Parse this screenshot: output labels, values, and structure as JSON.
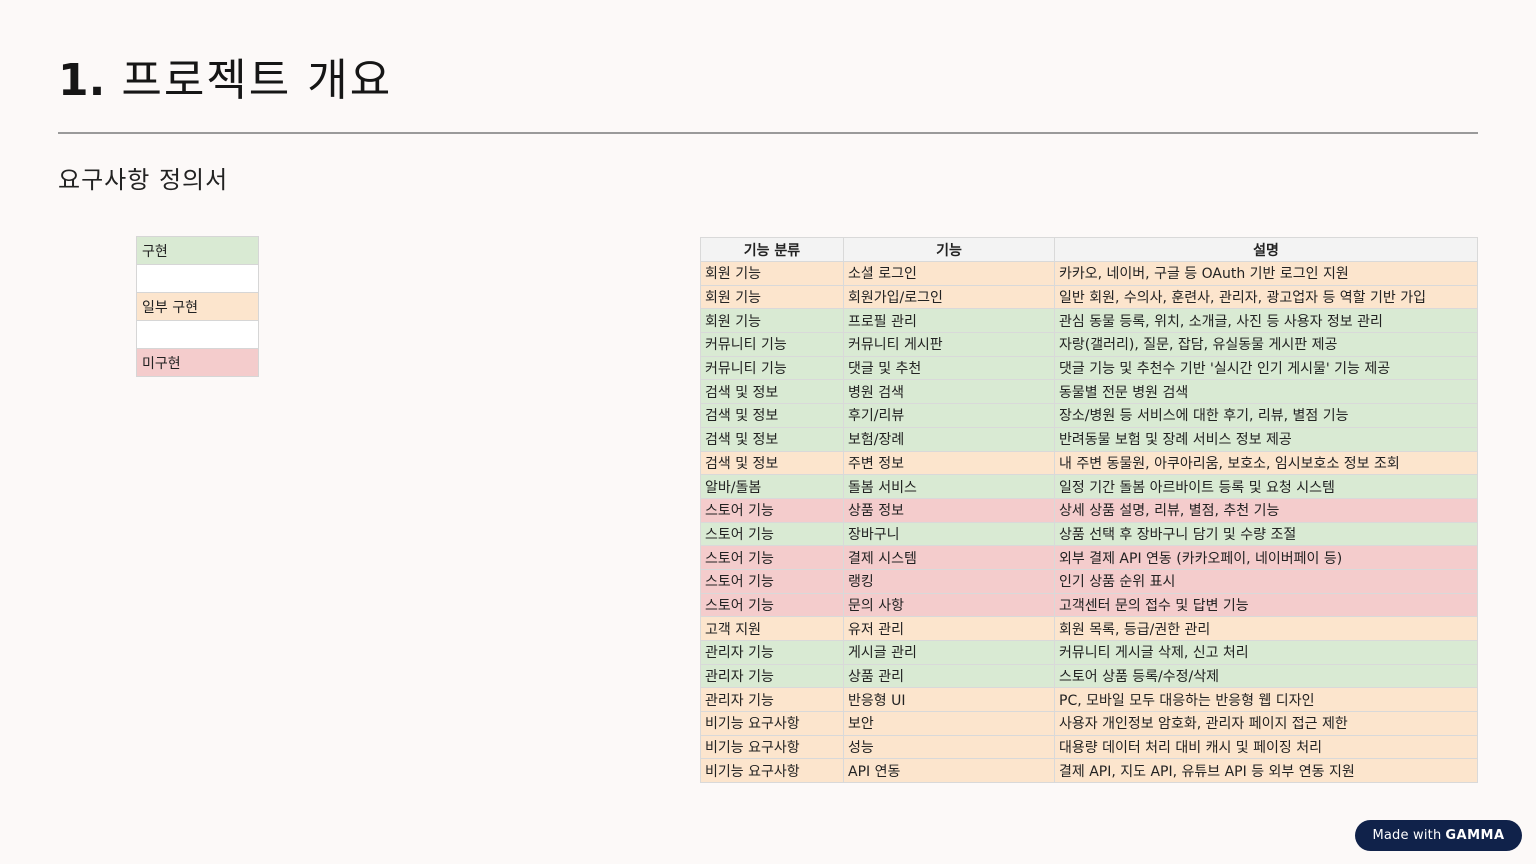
{
  "slide": {
    "title_number": "1.",
    "title_text": "프로젝트 개요",
    "subtitle": "요구사항 정의서"
  },
  "legend": [
    {
      "label": "구현",
      "status": "green"
    },
    {
      "label": "",
      "status": "white"
    },
    {
      "label": "일부 구현",
      "status": "orange"
    },
    {
      "label": "",
      "status": "white"
    },
    {
      "label": "미구현",
      "status": "red"
    }
  ],
  "status_colors": {
    "green": "#d9ead3",
    "orange": "#fce5cd",
    "red": "#f4cccc",
    "white": "#ffffff"
  },
  "table": {
    "headers": [
      "기능 분류",
      "기능",
      "설명"
    ],
    "rows": [
      {
        "category": "회원 기능",
        "feature": "소셜 로그인",
        "description": "카카오, 네이버, 구글 등 OAuth 기반 로그인 지원",
        "status": "orange"
      },
      {
        "category": "회원 기능",
        "feature": "회원가입/로그인",
        "description": "일반 회원, 수의사, 훈련사, 관리자, 광고업자 등 역할 기반 가입",
        "status": "orange"
      },
      {
        "category": "회원 기능",
        "feature": "프로필 관리",
        "description": "관심 동물 등록, 위치, 소개글, 사진 등 사용자 정보 관리",
        "status": "green"
      },
      {
        "category": "커뮤니티 기능",
        "feature": "커뮤니티 게시판",
        "description": "자랑(갤러리), 질문, 잡담, 유실동물 게시판 제공",
        "status": "green"
      },
      {
        "category": "커뮤니티 기능",
        "feature": "댓글 및 추천",
        "description": "댓글 기능 및 추천수 기반 '실시간 인기 게시물' 기능 제공",
        "status": "green"
      },
      {
        "category": "검색 및 정보",
        "feature": "병원 검색",
        "description": "동물별 전문 병원 검색",
        "status": "green"
      },
      {
        "category": "검색 및 정보",
        "feature": "후기/리뷰",
        "description": "장소/병원 등 서비스에 대한 후기, 리뷰, 별점 기능",
        "status": "green"
      },
      {
        "category": "검색 및 정보",
        "feature": "보험/장례",
        "description": "반려동물 보험 및 장례 서비스 정보 제공",
        "status": "green"
      },
      {
        "category": "검색 및 정보",
        "feature": "주변 정보",
        "description": "내 주변 동물원, 아쿠아리움, 보호소, 임시보호소 정보 조회",
        "status": "orange"
      },
      {
        "category": "알바/돌봄",
        "feature": "돌봄 서비스",
        "description": "일정 기간 돌봄 아르바이트 등록 및 요청 시스템",
        "status": "green"
      },
      {
        "category": "스토어 기능",
        "feature": "상품 정보",
        "description": "상세 상품 설명, 리뷰, 별점, 추천 기능",
        "status": "red"
      },
      {
        "category": "스토어 기능",
        "feature": "장바구니",
        "description": "상품 선택 후 장바구니 담기 및 수량 조절",
        "status": "green"
      },
      {
        "category": "스토어 기능",
        "feature": "결제 시스템",
        "description": "외부 결제 API 연동 (카카오페이, 네이버페이 등)",
        "status": "red"
      },
      {
        "category": "스토어 기능",
        "feature": "랭킹",
        "description": "인기 상품 순위 표시",
        "status": "red"
      },
      {
        "category": "스토어 기능",
        "feature": "문의 사항",
        "description": "고객센터 문의 접수 및 답변 기능",
        "status": "red"
      },
      {
        "category": "고객 지원",
        "feature": "유저 관리",
        "description": "회원 목록, 등급/권한 관리",
        "status": "orange"
      },
      {
        "category": "관리자 기능",
        "feature": "게시글 관리",
        "description": "커뮤니티 게시글 삭제, 신고 처리",
        "status": "green"
      },
      {
        "category": "관리자 기능",
        "feature": "상품 관리",
        "description": "스토어 상품 등록/수정/삭제",
        "status": "green"
      },
      {
        "category": "관리자 기능",
        "feature": "반응형 UI",
        "description": "PC, 모바일 모두 대응하는 반응형 웹 디자인",
        "status": "orange"
      },
      {
        "category": "비기능 요구사항",
        "feature": "보안",
        "description": "사용자 개인정보 암호화, 관리자 페이지 접근 제한",
        "status": "orange"
      },
      {
        "category": "비기능 요구사항",
        "feature": "성능",
        "description": "대용량 데이터 처리 대비 캐시 및 페이징 처리",
        "status": "orange"
      },
      {
        "category": "비기능 요구사항",
        "feature": "API 연동",
        "description": "결제 API, 지도 API, 유튜브 API 등 외부 연동 지원",
        "status": "orange"
      }
    ]
  },
  "badge": {
    "prefix": "Made with",
    "brand": "GAMMA"
  }
}
